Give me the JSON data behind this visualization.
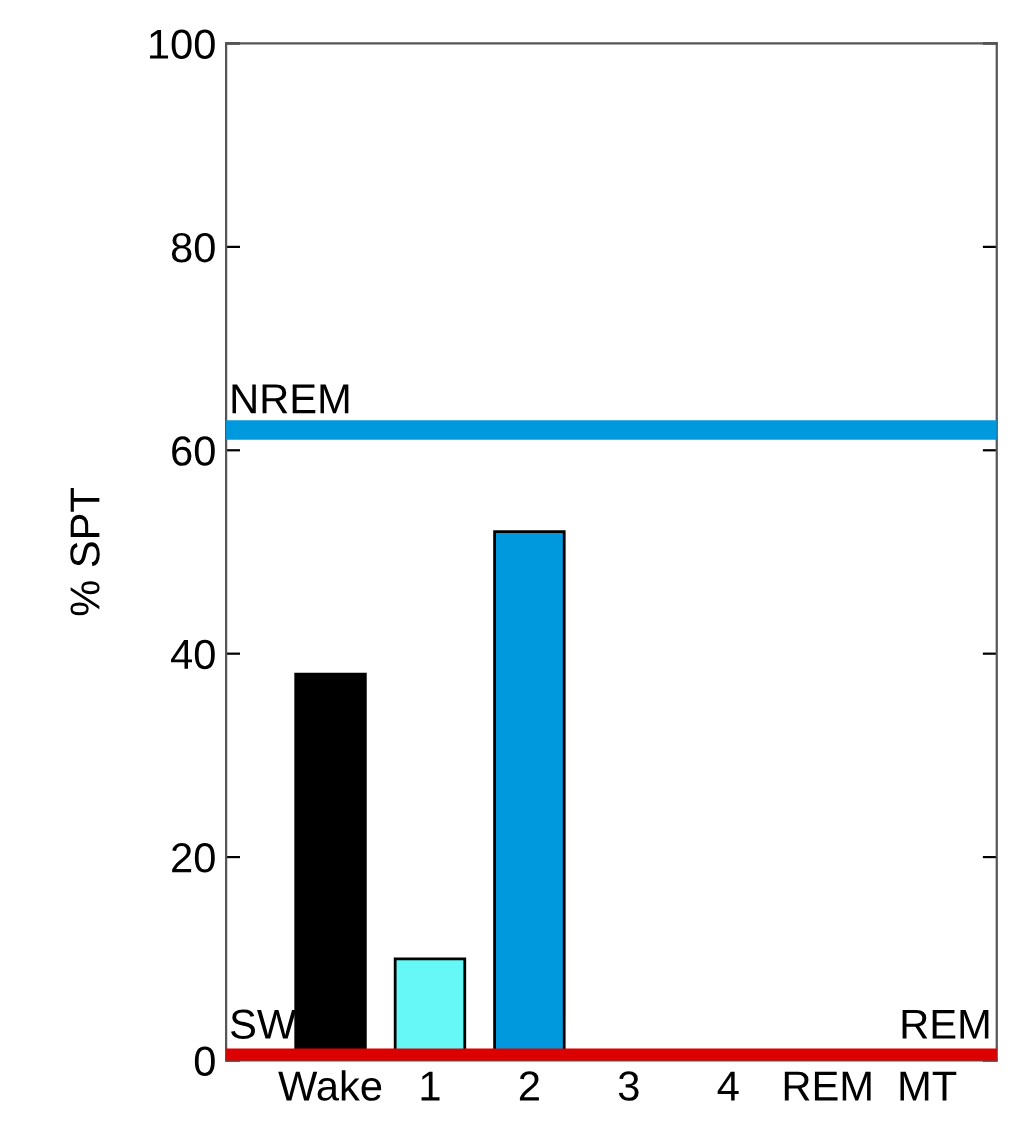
{
  "chart_data": {
    "type": "bar",
    "ylabel": "% SPT",
    "categories": [
      "Wake",
      "1",
      "2",
      "3",
      "4",
      "REM",
      "MT"
    ],
    "values": [
      38,
      10,
      52,
      0,
      0,
      0,
      0
    ],
    "colors": [
      "#000000",
      "#66f7f7",
      "#0099dd",
      "#000000",
      "#000000",
      "#000000",
      "#000000"
    ],
    "ylim": [
      0,
      100
    ],
    "yticks": [
      0,
      20,
      40,
      60,
      80,
      100
    ],
    "grid": false,
    "ref_lines": [
      {
        "axis": "y",
        "value": 62,
        "label": "NREM",
        "color": "#0099dd"
      },
      {
        "axis": "y",
        "value": 0.5,
        "label": "SW",
        "color": "#dd0000"
      }
    ],
    "annotations": [
      "REM"
    ]
  }
}
